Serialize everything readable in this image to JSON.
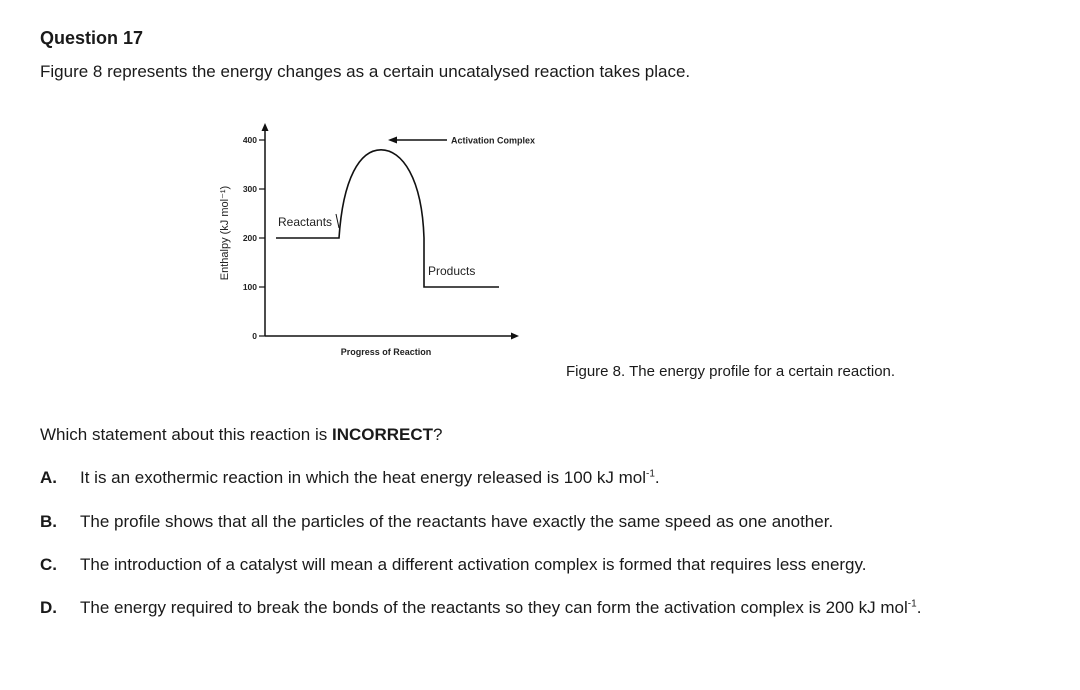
{
  "question": {
    "title": "Question 17",
    "intro": "Figure 8 represents the energy changes as a certain uncatalysed reaction takes place.",
    "prompt_before": "Which statement about this reaction is ",
    "prompt_bold": "INCORRECT",
    "prompt_after": "?",
    "options": [
      {
        "letter": "A.",
        "text": "It is an exothermic reaction in which the heat energy released is 100 kJ mol",
        "sup": "-1",
        "tail": "."
      },
      {
        "letter": "B.",
        "text": "The profile shows that all the particles of the reactants have exactly the same speed as one another.",
        "sup": "",
        "tail": ""
      },
      {
        "letter": "C.",
        "text": "The introduction of a catalyst will mean a different activation complex is formed that requires less energy.",
        "sup": "",
        "tail": ""
      },
      {
        "letter": "D.",
        "text": "The energy required to break the bonds of the reactants so they can form the activation complex is 200 kJ mol",
        "sup": "-1",
        "tail": "."
      }
    ]
  },
  "figure": {
    "caption": "Figure 8. The energy profile for a certain reaction.",
    "ylabel": "Enthalpy (kJ mol⁻¹)",
    "xlabel": "Progress of Reaction",
    "y_ticks": [
      "400",
      "300",
      "200",
      "100",
      "0"
    ],
    "labels": {
      "reactants": "Reactants",
      "products": "Products",
      "activation_complex": "Activation Complex"
    }
  },
  "chart_data": {
    "type": "line",
    "title": "",
    "xlabel": "Progress of Reaction",
    "ylabel": "Enthalpy (kJ mol⁻¹)",
    "ylim": [
      0,
      400
    ],
    "y_ticks": [
      0,
      100,
      200,
      300,
      400
    ],
    "levels": {
      "reactants": 200,
      "activation_complex": 380,
      "products": 100
    },
    "annotations": [
      "Reactants",
      "Products",
      "Activation Complex"
    ],
    "grid": false
  }
}
